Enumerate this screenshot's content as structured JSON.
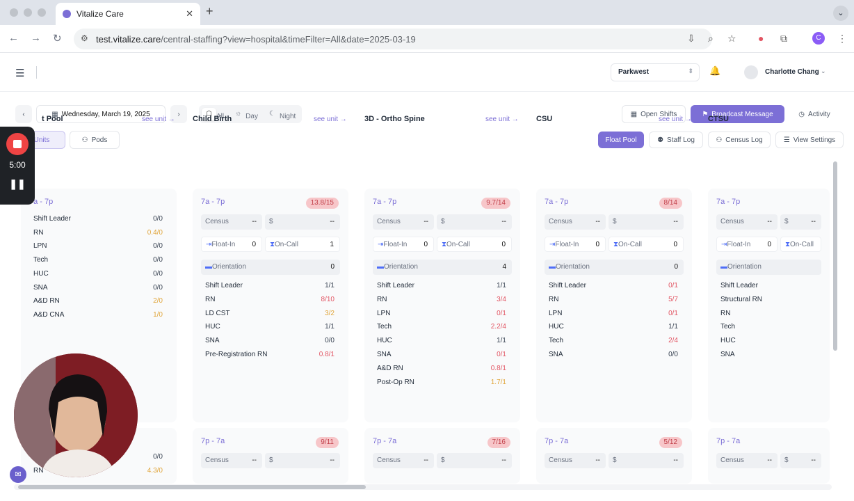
{
  "browser": {
    "tab_title": "Vitalize Care",
    "url_host": "test.vitalize.care",
    "url_path": "/central-staffing?view=hospital&timeFilter=All&date=2025-03-19",
    "profile_initial": "C"
  },
  "header": {
    "facility": "Parkwest",
    "user_name": "Charlotte Chang"
  },
  "toolbar": {
    "date": "Wednesday, March 19, 2025",
    "time_filters": [
      "All",
      "Day",
      "Night"
    ],
    "open_shifts": "Open Shifts",
    "broadcast": "Broadcast Message",
    "activity": "Activity",
    "units": "Units",
    "pods": "Pods",
    "float_pool": "Float Pool",
    "staff_log": "Staff Log",
    "census_log": "Census Log",
    "view_settings": "View Settings"
  },
  "recorder": {
    "time": "5:00"
  },
  "labels": {
    "see_unit": "see unit →",
    "census": "Census",
    "dollar": "$",
    "float_in": "Float-In",
    "on_call": "On-Call",
    "orientation": "Orientation",
    "dash": "--"
  },
  "columns": [
    {
      "name": "t Pool",
      "day": {
        "shift": "7a - 7p",
        "ratio": "",
        "roles": [
          [
            "Shift Leader",
            "0/0",
            "dark"
          ],
          [
            "RN",
            "0.4/0",
            "orange"
          ],
          [
            "LPN",
            "0/0",
            "dark"
          ],
          [
            "Tech",
            "0/0",
            "dark"
          ],
          [
            "HUC",
            "0/0",
            "dark"
          ],
          [
            "SNA",
            "0/0",
            "dark"
          ],
          [
            "A&D RN",
            "2/0",
            "orange"
          ],
          [
            "A&D CNA",
            "1/0",
            "orange"
          ]
        ]
      },
      "night_roles": [
        [
          "",
          "0/0",
          "dark"
        ],
        [
          "RN",
          "4.3/0",
          "orange"
        ]
      ]
    },
    {
      "name": "Child Birth",
      "day": {
        "shift": "7a - 7p",
        "ratio": "13.8/15",
        "float_in": "0",
        "on_call": "1",
        "orientation": "0",
        "roles": [
          [
            "Shift Leader",
            "1/1",
            "dark"
          ],
          [
            "RN",
            "8/10",
            "red"
          ],
          [
            "LD CST",
            "3/2",
            "orange"
          ],
          [
            "HUC",
            "1/1",
            "dark"
          ],
          [
            "SNA",
            "0/0",
            "dark"
          ],
          [
            "Pre-Registration RN",
            "0.8/1",
            "red"
          ]
        ]
      },
      "night": {
        "shift": "7p - 7a",
        "ratio": "9/11"
      }
    },
    {
      "name": "3D - Ortho Spine",
      "day": {
        "shift": "7a - 7p",
        "ratio": "9.7/14",
        "float_in": "0",
        "on_call": "0",
        "orientation": "4",
        "roles": [
          [
            "Shift Leader",
            "1/1",
            "dark"
          ],
          [
            "RN",
            "3/4",
            "red"
          ],
          [
            "LPN",
            "0/1",
            "red"
          ],
          [
            "Tech",
            "2.2/4",
            "red"
          ],
          [
            "HUC",
            "1/1",
            "dark"
          ],
          [
            "SNA",
            "0/1",
            "red"
          ],
          [
            "A&D RN",
            "0.8/1",
            "red"
          ],
          [
            "Post-Op RN",
            "1.7/1",
            "orange"
          ]
        ]
      },
      "night": {
        "shift": "7p - 7a",
        "ratio": "7/16"
      }
    },
    {
      "name": "CSU",
      "day": {
        "shift": "7a - 7p",
        "ratio": "8/14",
        "float_in": "0",
        "on_call": "0",
        "orientation": "0",
        "roles": [
          [
            "Shift Leader",
            "0/1",
            "red"
          ],
          [
            "RN",
            "5/7",
            "red"
          ],
          [
            "LPN",
            "0/1",
            "red"
          ],
          [
            "HUC",
            "1/1",
            "dark"
          ],
          [
            "Tech",
            "2/4",
            "red"
          ],
          [
            "SNA",
            "0/0",
            "dark"
          ]
        ]
      },
      "night": {
        "shift": "7p - 7a",
        "ratio": "5/12"
      }
    },
    {
      "name": "CTSU",
      "day": {
        "shift": "7a - 7p",
        "ratio": "",
        "float_in": "0",
        "on_call": "",
        "orientation": "",
        "roles": [
          [
            "Shift Leader",
            "",
            "dark"
          ],
          [
            "Structural RN",
            "",
            "dark"
          ],
          [
            "RN",
            "",
            "dark"
          ],
          [
            "Tech",
            "",
            "dark"
          ],
          [
            "HUC",
            "",
            "dark"
          ],
          [
            "SNA",
            "",
            "dark"
          ]
        ]
      },
      "night": {
        "shift": "7p - 7a",
        "ratio": ""
      }
    }
  ]
}
